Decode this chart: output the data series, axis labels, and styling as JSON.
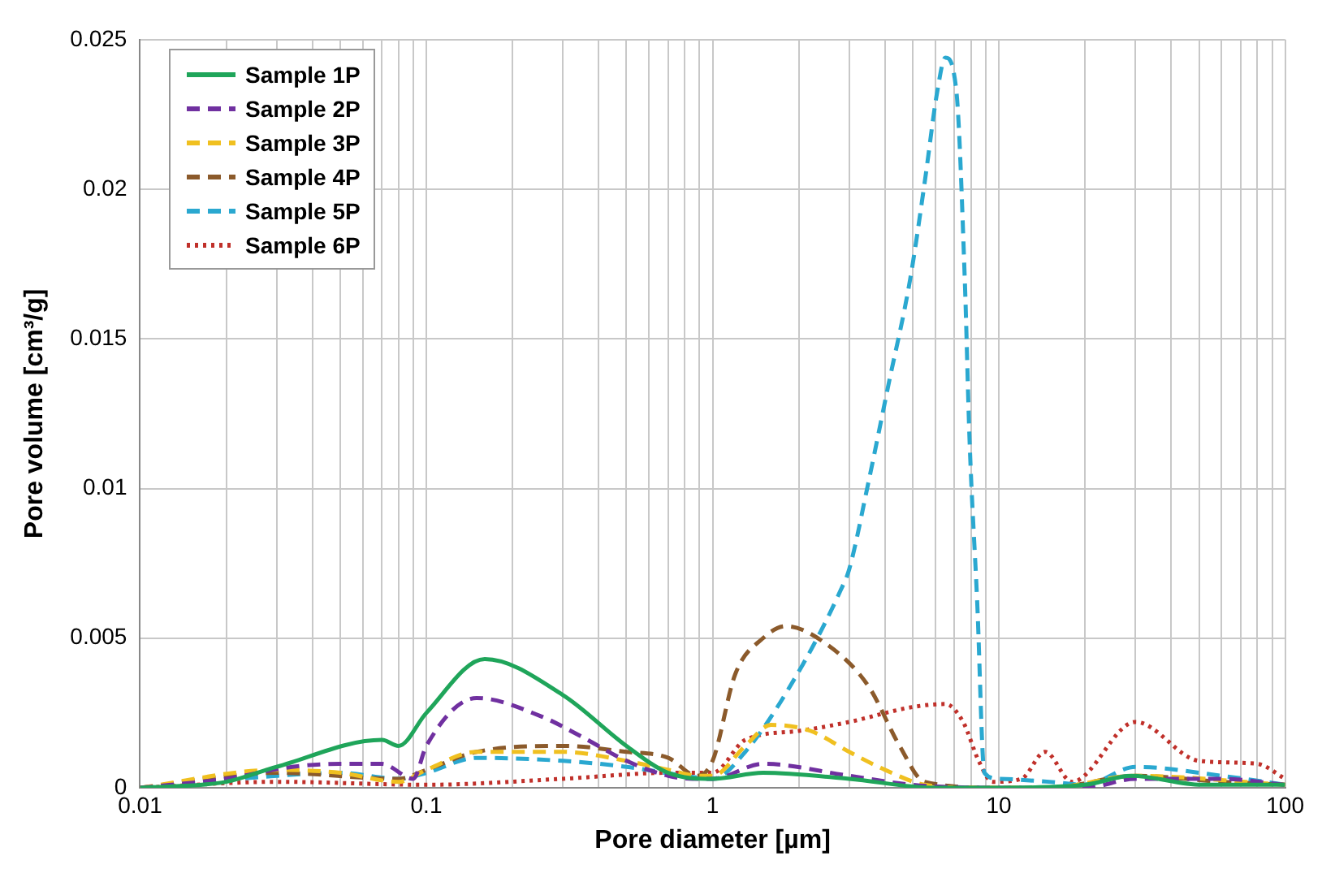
{
  "chart_data": {
    "type": "line",
    "xlabel": "Pore diameter [µm]",
    "ylabel": "Pore volume [cm³/g]",
    "log": "x",
    "grid": true,
    "legend": "top left",
    "marker": "none",
    "xlim": [
      0.01,
      100
    ],
    "ylim": [
      0,
      0.025
    ],
    "xticks": [
      0.01,
      {
        "value": 0.02,
        "label": null
      },
      {
        "value": 0.03,
        "label": null
      },
      {
        "value": 0.04,
        "label": null
      },
      {
        "value": 0.05,
        "label": null
      },
      {
        "value": 0.06,
        "label": null
      },
      {
        "value": 0.07,
        "label": null
      },
      {
        "value": 0.08,
        "label": null
      },
      {
        "value": 0.09,
        "label": null
      },
      0.1,
      {
        "value": 0.2,
        "label": null
      },
      {
        "value": 0.3,
        "label": null
      },
      {
        "value": 0.4,
        "label": null
      },
      {
        "value": 0.5,
        "label": null
      },
      {
        "value": 0.6,
        "label": null
      },
      {
        "value": 0.7,
        "label": null
      },
      {
        "value": 0.8,
        "label": null
      },
      {
        "value": 0.9,
        "label": null
      },
      1,
      {
        "value": 2,
        "label": null
      },
      {
        "value": 3,
        "label": null
      },
      {
        "value": 4,
        "label": null
      },
      {
        "value": 5,
        "label": null
      },
      {
        "value": 6,
        "label": null
      },
      {
        "value": 7,
        "label": null
      },
      {
        "value": 8,
        "label": null
      },
      {
        "value": 9,
        "label": null
      },
      10,
      {
        "value": 20,
        "label": null
      },
      {
        "value": 30,
        "label": null
      },
      {
        "value": 40,
        "label": null
      },
      {
        "value": 50,
        "label": null
      },
      {
        "value": 60,
        "label": null
      },
      {
        "value": 70,
        "label": null
      },
      {
        "value": 80,
        "label": null
      },
      {
        "value": 90,
        "label": null
      },
      100
    ],
    "yticks": [
      0,
      0.005,
      0.01,
      0.015,
      0.02,
      0.025
    ],
    "series": [
      {
        "name": "Sample 1P",
        "color": "#1fa55a",
        "line_style": "solid",
        "x": [
          0.01,
          0.02,
          0.03,
          0.07,
          0.08,
          0.1,
          0.16,
          0.3,
          0.5,
          0.7,
          1,
          1.5,
          3,
          6,
          10,
          20,
          29,
          51,
          100
        ],
        "values": [
          0,
          0.0002,
          0.0007,
          0.0016,
          0.0014,
          0.0025,
          0.0043,
          0.0031,
          0.0014,
          0.0005,
          0.0003,
          0.0005,
          0.0003,
          0,
          0,
          0.0001,
          0.0004,
          0.0001,
          0.0001
        ]
      },
      {
        "name": "Sample 2P",
        "color": "#7030a0",
        "line_style": "dashed",
        "x": [
          0.01,
          0.02,
          0.034,
          0.05,
          0.07,
          0.09,
          0.1,
          0.15,
          0.25,
          0.35,
          0.5,
          0.7,
          0.85,
          1,
          1.5,
          3,
          5,
          10,
          20,
          30,
          60,
          100
        ],
        "values": [
          0,
          0.0003,
          0.0007,
          0.0008,
          0.0008,
          0.0003,
          0.0014,
          0.003,
          0.0024,
          0.0017,
          0.0009,
          0.0004,
          0.0003,
          0.0003,
          0.0008,
          0.0004,
          0.0001,
          0,
          0,
          0.0003,
          0.0003,
          0.0001
        ]
      },
      {
        "name": "Sample 3P",
        "color": "#f0c020",
        "line_style": "dashed",
        "x": [
          0.01,
          0.03,
          0.05,
          0.08,
          0.1,
          0.15,
          0.3,
          0.5,
          0.7,
          0.9,
          1,
          1.3,
          1.6,
          2.2,
          3,
          4,
          5.5,
          8,
          15,
          30,
          100
        ],
        "values": [
          0,
          0.0006,
          0.0005,
          0.0002,
          0.0006,
          0.0012,
          0.0012,
          0.0009,
          0.0006,
          0.0004,
          0.0004,
          0.0014,
          0.0021,
          0.0019,
          0.0012,
          0.0006,
          0.0001,
          0,
          0,
          0.0004,
          0.0001
        ]
      },
      {
        "name": "Sample 4P",
        "color": "#8b5a2b",
        "line_style": "dashed",
        "x": [
          0.01,
          0.03,
          0.08,
          0.1,
          0.15,
          0.3,
          0.5,
          0.7,
          0.88,
          1,
          1.2,
          1.5,
          1.8,
          2.5,
          3.5,
          4.5,
          5.5,
          10,
          15,
          30,
          60,
          100
        ],
        "values": [
          0,
          0.0005,
          0.0003,
          0.0006,
          0.0012,
          0.0014,
          0.0012,
          0.001,
          0.0004,
          0.0009,
          0.0038,
          0.005,
          0.0054,
          0.0048,
          0.0034,
          0.0014,
          0.0002,
          0,
          0,
          0.0004,
          0.0002,
          0.0001
        ]
      },
      {
        "name": "Sample 5P",
        "color": "#2aa8d0",
        "line_style": "dashed",
        "x": [
          0.01,
          0.03,
          0.05,
          0.08,
          0.1,
          0.15,
          0.3,
          0.5,
          0.8,
          1,
          1.3,
          2.06,
          2.8,
          3,
          3.5,
          4.1,
          4.9,
          5.5,
          6.1,
          6.5,
          7.1,
          7.6,
          7.9,
          8.4,
          8.9,
          10,
          15,
          20,
          30,
          60,
          100
        ],
        "values": [
          0,
          0.0004,
          0.0005,
          0.0003,
          0.0005,
          0.001,
          0.0009,
          0.0007,
          0.0004,
          0.0003,
          0.0012,
          0.0041,
          0.0066,
          0.0073,
          0.0102,
          0.0134,
          0.017,
          0.0202,
          0.0233,
          0.0244,
          0.0233,
          0.017,
          0.0116,
          0.0062,
          0.0005,
          0.0003,
          0.0002,
          0.0001,
          0.0007,
          0.0004,
          0.0001
        ]
      },
      {
        "name": "Sample 6P",
        "color": "#c0302a",
        "line_style": "dotted",
        "x": [
          0.01,
          0.03,
          0.1,
          0.3,
          0.7,
          1,
          1.3,
          2,
          3,
          5,
          6.5,
          7.5,
          8.5,
          9.5,
          12,
          14.5,
          18,
          30,
          50,
          80,
          100
        ],
        "values": [
          0,
          0.0002,
          0.0001,
          0.0003,
          0.0005,
          0.0005,
          0.0016,
          0.0019,
          0.0022,
          0.0027,
          0.0028,
          0.0022,
          0.0009,
          0.0002,
          0.0003,
          0.0012,
          0.0002,
          0.0022,
          0.0009,
          0.0008,
          0.0003
        ]
      }
    ]
  }
}
